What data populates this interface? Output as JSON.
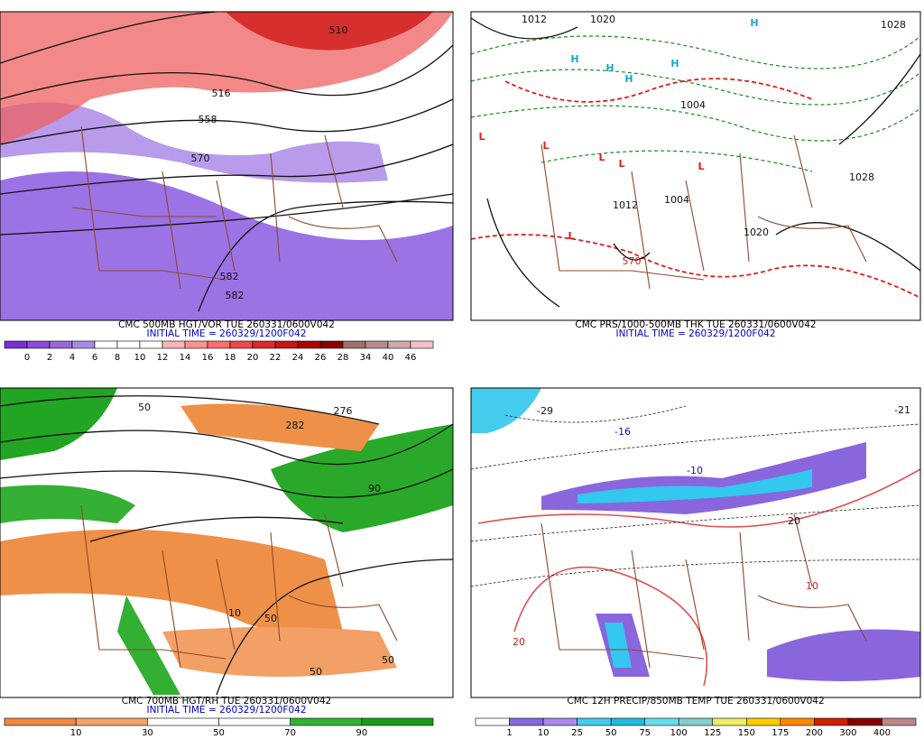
{
  "panels": [
    {
      "caption": "CMC 500MB HGT/VOR TUE 260331/0600V042",
      "initial_time": "INITIAL TIME = 260329/1200F042",
      "colorbar": {
        "colors": [
          "#7b2fd6",
          "#8a4ade",
          "#9966dd",
          "#a88ae6",
          "#ffffff",
          "#ffffff",
          "#ffffff",
          "#ffb4b4",
          "#ff9090",
          "#ff6c6c",
          "#f04848",
          "#e02828",
          "#c81414",
          "#b00000",
          "#8c0000",
          "#a06e6e",
          "#b48c8c",
          "#d2a8aa",
          "#f4c0cc"
        ],
        "labels": [
          0,
          2,
          4,
          6,
          8,
          10,
          12,
          14,
          16,
          18,
          20,
          22,
          24,
          26,
          28,
          34,
          40,
          46
        ]
      },
      "labels": [
        "510",
        "516",
        "558",
        "570",
        "582",
        "582"
      ]
    },
    {
      "caption": "CMC PRS/1000-500MB THK TUE 260331/0600V042",
      "initial_time": "INITIAL TIME = 260329/1200F042",
      "colorbar": null,
      "labels": [
        "1012",
        "1020",
        "1028",
        "1004",
        "1012",
        "1004",
        "1020",
        "1028",
        "570",
        "H",
        "H",
        "H",
        "H",
        "H",
        "L",
        "L",
        "L",
        "L",
        "L",
        "L"
      ]
    },
    {
      "caption": "CMC 700MB HGT/RH TUE 260331/0600V042",
      "initial_time": "INITIAL TIME = 260329/1200F042",
      "colorbar": {
        "colors": [
          "#ee8844",
          "#f3a46a",
          "#ffffff",
          "#ffffff",
          "#33b233",
          "#1a9a1a"
        ],
        "labels": [
          10,
          30,
          50,
          70,
          90
        ]
      },
      "labels": [
        "282",
        "276",
        "50",
        "90",
        "10",
        "50",
        "50",
        "50"
      ]
    },
    {
      "caption": "CMC 12H PRECIP/850MB TEMP TUE 260331/0600V042",
      "initial_time": null,
      "colorbar": {
        "colors": [
          "#ffffff",
          "#8866dd",
          "#aa88ee",
          "#44ccee",
          "#22bbdd",
          "#66ddee",
          "#88cccc",
          "#eeee66",
          "#ffcc00",
          "#ff8800",
          "#cc2200",
          "#880000",
          "#bb8888"
        ],
        "labels": [
          1,
          10,
          25,
          50,
          75,
          100,
          125,
          150,
          175,
          200,
          300,
          400
        ]
      },
      "labels": [
        "-16",
        "-10",
        "20",
        "10",
        "20",
        "-29",
        "-21"
      ]
    }
  ]
}
